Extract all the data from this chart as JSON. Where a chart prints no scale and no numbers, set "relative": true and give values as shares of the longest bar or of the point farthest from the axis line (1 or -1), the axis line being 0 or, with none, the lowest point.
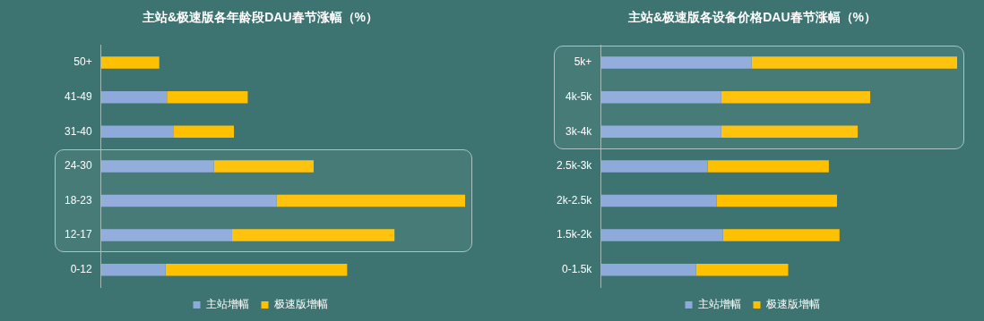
{
  "chart_data": [
    {
      "type": "bar",
      "title": "主站&极速版各年龄段DAU春节涨幅（%）",
      "orientation": "horizontal",
      "stacked": true,
      "relative": true,
      "tick_labels": "y",
      "grid": false,
      "legend": "bottom",
      "categories": [
        "50+",
        "41-49",
        "31-40",
        "24-30",
        "18-23",
        "12-17",
        "0-12"
      ],
      "series": [
        {
          "name": "主站增幅",
          "color": "#8eaadb",
          "values": [
            null,
            0.181,
            0.2,
            0.31,
            0.482,
            0.36,
            0.177
          ]
        },
        {
          "name": "极速版增幅",
          "color": "#ffc000",
          "values": [
            0.16,
            0.222,
            0.165,
            0.274,
            0.518,
            0.446,
            0.499
          ]
        }
      ]
    },
    {
      "type": "bar",
      "title": "主站&极速版各设备价格DAU春节涨幅（%）",
      "orientation": "horizontal",
      "stacked": true,
      "relative": true,
      "tick_labels": "y",
      "grid": false,
      "legend": "bottom",
      "categories": [
        "5k+",
        "4k-5k",
        "3k-4k",
        "2.5k-3k",
        "2k-2.5k",
        "1.5k-2k",
        "0-1.5k"
      ],
      "series": [
        {
          "name": "主站增幅",
          "color": "#8eaadb",
          "values": [
            0.423,
            0.338,
            0.338,
            0.3,
            0.325,
            0.343,
            0.267
          ]
        },
        {
          "name": "极速版增幅",
          "color": "#ffc000",
          "values": [
            0.577,
            0.418,
            0.383,
            0.34,
            0.338,
            0.327,
            0.259
          ]
        }
      ]
    }
  ]
}
